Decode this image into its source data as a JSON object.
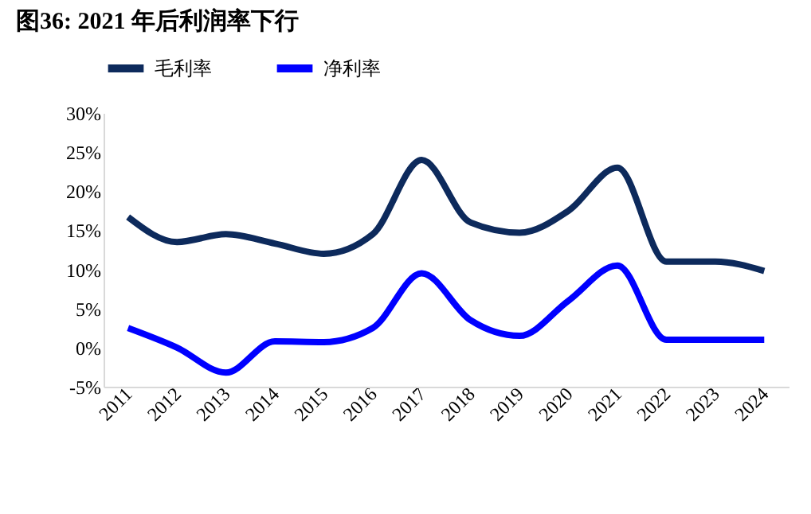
{
  "chart_data": {
    "type": "line",
    "title": "图36:  2021 年后利润率下行",
    "categories": [
      "2011",
      "2012",
      "2013",
      "2014",
      "2015",
      "2016",
      "2017",
      "2018",
      "2019",
      "2020",
      "2021",
      "2022",
      "2023",
      "2024"
    ],
    "series": [
      {
        "name": "毛利率",
        "color": "#0d2a5c",
        "values": [
          16.7,
          13.5,
          14.5,
          13.3,
          12,
          14.5,
          24,
          16,
          14.7,
          17.5,
          23,
          11,
          11,
          9.8
        ]
      },
      {
        "name": "净利率",
        "color": "#0000ff",
        "values": [
          2.5,
          0,
          -3.2,
          0.8,
          0.7,
          2.5,
          9.5,
          3.5,
          1.5,
          6,
          10.5,
          1,
          1,
          1
        ]
      }
    ],
    "ylim": [
      -5,
      30
    ],
    "yticks": [
      {
        "value": -5,
        "label": "-5%"
      },
      {
        "value": 0,
        "label": "0%"
      },
      {
        "value": 5,
        "label": "5%"
      },
      {
        "value": 10,
        "label": "10%"
      },
      {
        "value": 15,
        "label": "15%"
      },
      {
        "value": 20,
        "label": "20%"
      },
      {
        "value": 25,
        "label": "25%"
      },
      {
        "value": 30,
        "label": "30%"
      }
    ],
    "legend": "top",
    "grid": false,
    "marker": "none",
    "line_style": "solid"
  }
}
